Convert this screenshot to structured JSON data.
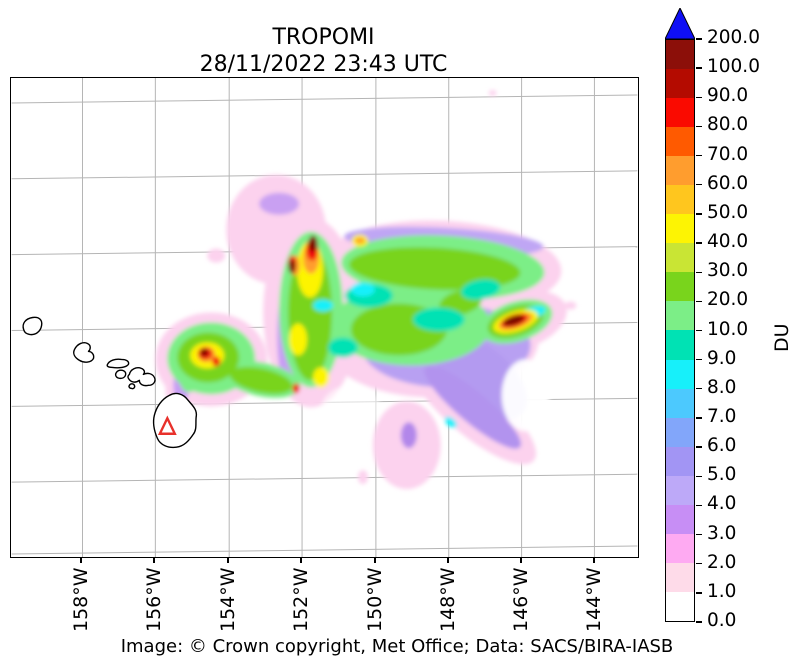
{
  "title": {
    "instrument": "TROPOMI",
    "datetime": "28/11/2022 23:43 UTC"
  },
  "attribution": "Image: © Crown copyright, Met Office; Data: SACS/BIRA-IASB",
  "x_axis": {
    "tick_labels": [
      "158°W",
      "156°W",
      "154°W",
      "152°W",
      "150°W",
      "148°W",
      "146°W",
      "144°W"
    ]
  },
  "colorbar": {
    "unit": "DU",
    "over_arrow_color": "#0f0ff5",
    "tick_labels": [
      "200.0",
      "100.0",
      "90.0",
      "80.0",
      "70.0",
      "60.0",
      "50.0",
      "40.0",
      "30.0",
      "20.0",
      "10.0",
      "9.0",
      "8.0",
      "7.0",
      "6.0",
      "5.0",
      "4.0",
      "3.0",
      "2.0",
      "1.0",
      "0.0"
    ],
    "segments": [
      {
        "range": "100.0-200.0",
        "color": "#8c0f09"
      },
      {
        "range": "90.0-100.0",
        "color": "#b40b00"
      },
      {
        "range": "80.0-90.0",
        "color": "#fa0a00"
      },
      {
        "range": "70.0-80.0",
        "color": "#ff5a00"
      },
      {
        "range": "60.0-70.0",
        "color": "#ff9d2e"
      },
      {
        "range": "50.0-60.0",
        "color": "#ffc61e"
      },
      {
        "range": "40.0-50.0",
        "color": "#fdf403"
      },
      {
        "range": "30.0-40.0",
        "color": "#c9e534"
      },
      {
        "range": "20.0-30.0",
        "color": "#79d41c"
      },
      {
        "range": "10.0-20.0",
        "color": "#7cee87"
      },
      {
        "range": "9.0-10.0",
        "color": "#00e2b4"
      },
      {
        "range": "8.0-9.0",
        "color": "#17f0fa"
      },
      {
        "range": "7.0-8.0",
        "color": "#4cc9fe"
      },
      {
        "range": "6.0-7.0",
        "color": "#82a6fa"
      },
      {
        "range": "5.0-6.0",
        "color": "#a295f4"
      },
      {
        "range": "4.0-5.0",
        "color": "#bda9f8"
      },
      {
        "range": "3.0-4.0",
        "color": "#c78ef5"
      },
      {
        "range": "2.0-3.0",
        "color": "#feaaf2"
      },
      {
        "range": "1.0-2.0",
        "color": "#fedbe9"
      },
      {
        "range": "0.0-1.0",
        "color": "#ffffff"
      }
    ]
  },
  "map": {
    "marker": {
      "name": "volcano-triangle",
      "color": "#e8312b"
    },
    "gridline_color": "#b5b5b5",
    "coastline_color": "#000000"
  },
  "chart_data": {
    "type": "heatmap",
    "title": "TROPOMI",
    "subtitle": "28/11/2022 23:43 UTC",
    "unit": "DU",
    "x_tick_labels": [
      "158°W",
      "156°W",
      "154°W",
      "152°W",
      "150°W",
      "148°W",
      "146°W",
      "144°W"
    ],
    "colorscale": {
      "levels": [
        0,
        1,
        2,
        3,
        4,
        5,
        6,
        7,
        8,
        9,
        10,
        20,
        30,
        40,
        50,
        60,
        70,
        80,
        90,
        100,
        200
      ],
      "colors": [
        "#ffffff",
        "#fedbe9",
        "#feaaf2",
        "#c78ef5",
        "#bda9f8",
        "#a295f4",
        "#82a6fa",
        "#4cc9fe",
        "#17f0fa",
        "#00e2b4",
        "#7cee87",
        "#79d41c",
        "#c9e534",
        "#fdf403",
        "#ffc61e",
        "#ff9d2e",
        "#ff5a00",
        "#fa0a00",
        "#b40b00",
        "#8c0f09"
      ],
      "over_color": "#0f0ff5"
    },
    "annotations": [
      "red open triangle marker on the large island near 156°W",
      "black island coastline outlines along island chain 160°W-154°W"
    ],
    "features": [
      {
        "name": "plume-arm-west-hotspot",
        "approx_lon": "-155.8°",
        "peak_range_DU": "90-200"
      },
      {
        "name": "plume-north-arc-hotspot",
        "approx_lon": "-152.2°",
        "peak_range_DU": "100-200"
      },
      {
        "name": "plume-east-hotspot",
        "approx_lon": "-146.9°",
        "peak_range_DU": "100-200"
      },
      {
        "name": "plume-main-arc",
        "approx_lon": "-156° to -146°",
        "range_DU": "10-50"
      },
      {
        "name": "diffuse-tail-southeast",
        "approx_lon": "-149° to -147°",
        "range_DU": "1-10"
      },
      {
        "name": "diffuse-patch-northwest",
        "approx_lon": "-153.5°",
        "range_DU": "1-4"
      }
    ]
  }
}
